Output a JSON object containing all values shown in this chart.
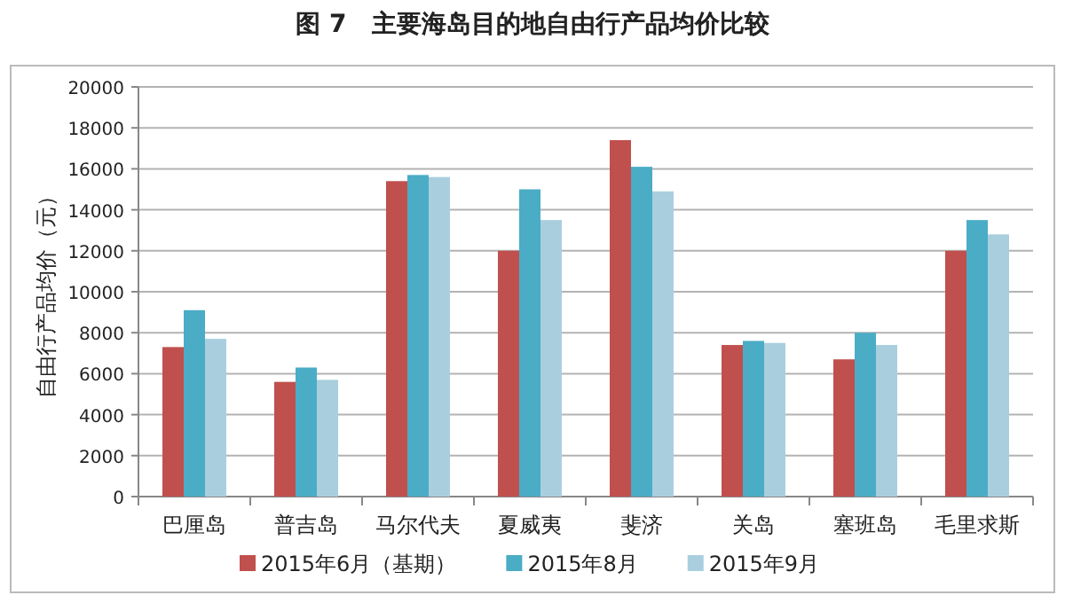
{
  "chart_data": {
    "type": "bar",
    "title": "图 7　主要海岛目的地自由行产品均价比较",
    "ylabel": "自由行产品均价（元）",
    "categories": [
      "巴厘岛",
      "普吉岛",
      "马尔代夫",
      "夏威夷",
      "斐济",
      "关岛",
      "塞班岛",
      "毛里求斯"
    ],
    "series": [
      {
        "name": "2015年6月（基期）",
        "color": "#c0504d",
        "values": [
          7300,
          5600,
          15400,
          12000,
          17400,
          7400,
          6700,
          12000
        ]
      },
      {
        "name": "2015年8月",
        "color": "#4bacc6",
        "values": [
          9100,
          6300,
          15700,
          15000,
          16100,
          7600,
          8000,
          13500
        ]
      },
      {
        "name": "2015年9月",
        "color": "#a9cfdf",
        "values": [
          7700,
          5700,
          15600,
          13500,
          14900,
          7500,
          7400,
          12800
        ]
      }
    ],
    "ylim": [
      0,
      20000
    ],
    "yticks": [
      0,
      2000,
      4000,
      6000,
      8000,
      10000,
      12000,
      14000,
      16000,
      18000,
      20000
    ],
    "grid": "y",
    "legend": "bottom"
  }
}
